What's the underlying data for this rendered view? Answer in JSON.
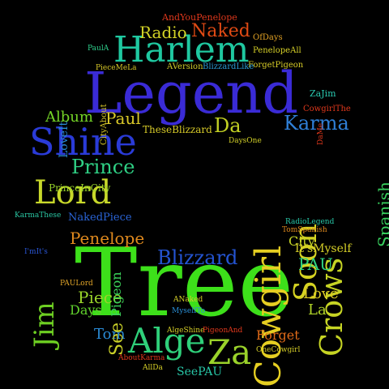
{
  "words": [
    {
      "id": "w1",
      "text": "Tree",
      "color": "#3de01a",
      "rot": ""
    },
    {
      "id": "w2",
      "text": "Legend",
      "color": "#3a2bd6",
      "rot": ""
    },
    {
      "id": "w3",
      "text": "Harlem",
      "color": "#1fc8a0",
      "rot": ""
    },
    {
      "id": "w4",
      "text": "Shine",
      "color": "#2a3bd8",
      "rot": ""
    },
    {
      "id": "w5",
      "text": "Alge",
      "color": "#2fd07a",
      "rot": ""
    },
    {
      "id": "w6",
      "text": "Za",
      "color": "#9ad22a",
      "rot": ""
    },
    {
      "id": "w7",
      "text": "Lord",
      "color": "#c8d82a",
      "rot": ""
    },
    {
      "id": "w8",
      "text": "Cowgirl",
      "color": "#e6cf22",
      "rot": "v"
    },
    {
      "id": "w9",
      "text": "Crows",
      "color": "#c6d424",
      "rot": "v"
    },
    {
      "id": "w10",
      "text": "Soon",
      "color": "#d6d322",
      "rot": "v"
    },
    {
      "id": "w11",
      "text": "Jim",
      "color": "#6ecf22",
      "rot": "v"
    },
    {
      "id": "w12",
      "text": "Karma",
      "color": "#2f7fd6",
      "rot": ""
    },
    {
      "id": "w13",
      "text": "Naked",
      "color": "#e04a14",
      "rot": ""
    },
    {
      "id": "w14",
      "text": "Prince",
      "color": "#2fcf84",
      "rot": ""
    },
    {
      "id": "w15",
      "text": "Blizzard",
      "color": "#2454d2",
      "rot": ""
    },
    {
      "id": "w16",
      "text": "Penelope",
      "color": "#e08a1e",
      "rot": ""
    },
    {
      "id": "w17",
      "text": "Da",
      "color": "#c2d024",
      "rot": ""
    },
    {
      "id": "w18",
      "text": "Paul",
      "color": "#d9c828",
      "rot": ""
    },
    {
      "id": "w19",
      "text": "Radio",
      "color": "#d2d226",
      "rot": ""
    },
    {
      "id": "w20",
      "text": "Album",
      "color": "#74d426",
      "rot": ""
    },
    {
      "id": "w21",
      "text": "Piece",
      "color": "#9ad42a",
      "rot": ""
    },
    {
      "id": "w22",
      "text": "Days",
      "color": "#60d02c",
      "rot": ""
    },
    {
      "id": "w23",
      "text": "Tom",
      "color": "#2a8ad4",
      "rot": ""
    },
    {
      "id": "w24",
      "text": "PAU",
      "color": "#2fd080",
      "rot": ""
    },
    {
      "id": "w25",
      "text": "City",
      "color": "#c4d426",
      "rot": ""
    },
    {
      "id": "w26",
      "text": "Love",
      "color": "#dccb24",
      "rot": ""
    },
    {
      "id": "w27",
      "text": "La",
      "color": "#b0d428",
      "rot": ""
    },
    {
      "id": "w28",
      "text": "Forget",
      "color": "#e06a18",
      "rot": ""
    },
    {
      "id": "w29",
      "text": "Pigeon",
      "color": "#3bd25a",
      "rot": "v"
    },
    {
      "id": "w30",
      "text": "See",
      "color": "#c8cf28",
      "rot": "v"
    },
    {
      "id": "w31",
      "text": "It'sMyself",
      "color": "#d6cf28",
      "rot": ""
    },
    {
      "id": "w32",
      "text": "Spanish",
      "color": "#38d05e",
      "rot": "v"
    },
    {
      "id": "w33",
      "text": "SeePAU",
      "color": "#28c8a8",
      "rot": ""
    },
    {
      "id": "w34",
      "text": "NakedPiece",
      "color": "#2a64d6",
      "rot": ""
    },
    {
      "id": "w35",
      "text": "PrinceInCity",
      "color": "#98d42a",
      "rot": ""
    },
    {
      "id": "w36",
      "text": "AndYouPenelope",
      "color": "#e0381c",
      "rot": ""
    },
    {
      "id": "w37",
      "text": "OfDays",
      "color": "#e0a024",
      "rot": ""
    },
    {
      "id": "w38",
      "text": "PenelopeAll",
      "color": "#d6d028",
      "rot": ""
    },
    {
      "id": "w39",
      "text": "ForgetPigeon",
      "color": "#d8cd28",
      "rot": ""
    },
    {
      "id": "w40",
      "text": "PaulA",
      "color": "#2fcf8c",
      "rot": ""
    },
    {
      "id": "w41",
      "text": "PieceMeLa",
      "color": "#d8c828",
      "rot": ""
    },
    {
      "id": "w42",
      "text": "AVersion",
      "color": "#d0cc28",
      "rot": ""
    },
    {
      "id": "w43",
      "text": "BlizzardLike",
      "color": "#2a9ad4",
      "rot": ""
    },
    {
      "id": "w44",
      "text": "ZaJim",
      "color": "#2ac8b0",
      "rot": ""
    },
    {
      "id": "w45",
      "text": "CowgirlThe",
      "color": "#e0381c",
      "rot": ""
    },
    {
      "id": "w46",
      "text": "TheseBlizzard",
      "color": "#d6ca28",
      "rot": ""
    },
    {
      "id": "w47",
      "text": "DaysOne",
      "color": "#d2d028",
      "rot": ""
    },
    {
      "id": "w48",
      "text": "KarmaThese",
      "color": "#2ac8a4",
      "rot": ""
    },
    {
      "id": "w49",
      "text": "I'mIt's",
      "color": "#2a56d6",
      "rot": ""
    },
    {
      "id": "w50",
      "text": "RadioLegend",
      "color": "#28c8a8",
      "rot": ""
    },
    {
      "id": "w51",
      "text": "TomSpanish",
      "color": "#e08a1e",
      "rot": ""
    },
    {
      "id": "w52",
      "text": "PAULord",
      "color": "#e0a428",
      "rot": ""
    },
    {
      "id": "w53",
      "text": "ANaked",
      "color": "#d4ce28",
      "rot": ""
    },
    {
      "id": "w54",
      "text": "MyselfTo",
      "color": "#2a8ed4",
      "rot": ""
    },
    {
      "id": "w55",
      "text": "AlgeShine",
      "color": "#d6cf28",
      "rot": ""
    },
    {
      "id": "w56",
      "text": "PigeonAnd",
      "color": "#e0381c",
      "rot": ""
    },
    {
      "id": "w57",
      "text": "AboutKarma",
      "color": "#e0381c",
      "rot": ""
    },
    {
      "id": "w58",
      "text": "OneCowgirl",
      "color": "#d6cf28",
      "rot": ""
    },
    {
      "id": "w59",
      "text": "AllDa",
      "color": "#d6cf28",
      "rot": ""
    },
    {
      "id": "w60",
      "text": "LoveIt",
      "color": "#2a8ad4",
      "rot": "v"
    },
    {
      "id": "w61",
      "text": "CityAbout",
      "color": "#d8c828",
      "rot": "v"
    },
    {
      "id": "w62",
      "text": "DaMe",
      "color": "#e0381c",
      "rot": "v"
    }
  ]
}
